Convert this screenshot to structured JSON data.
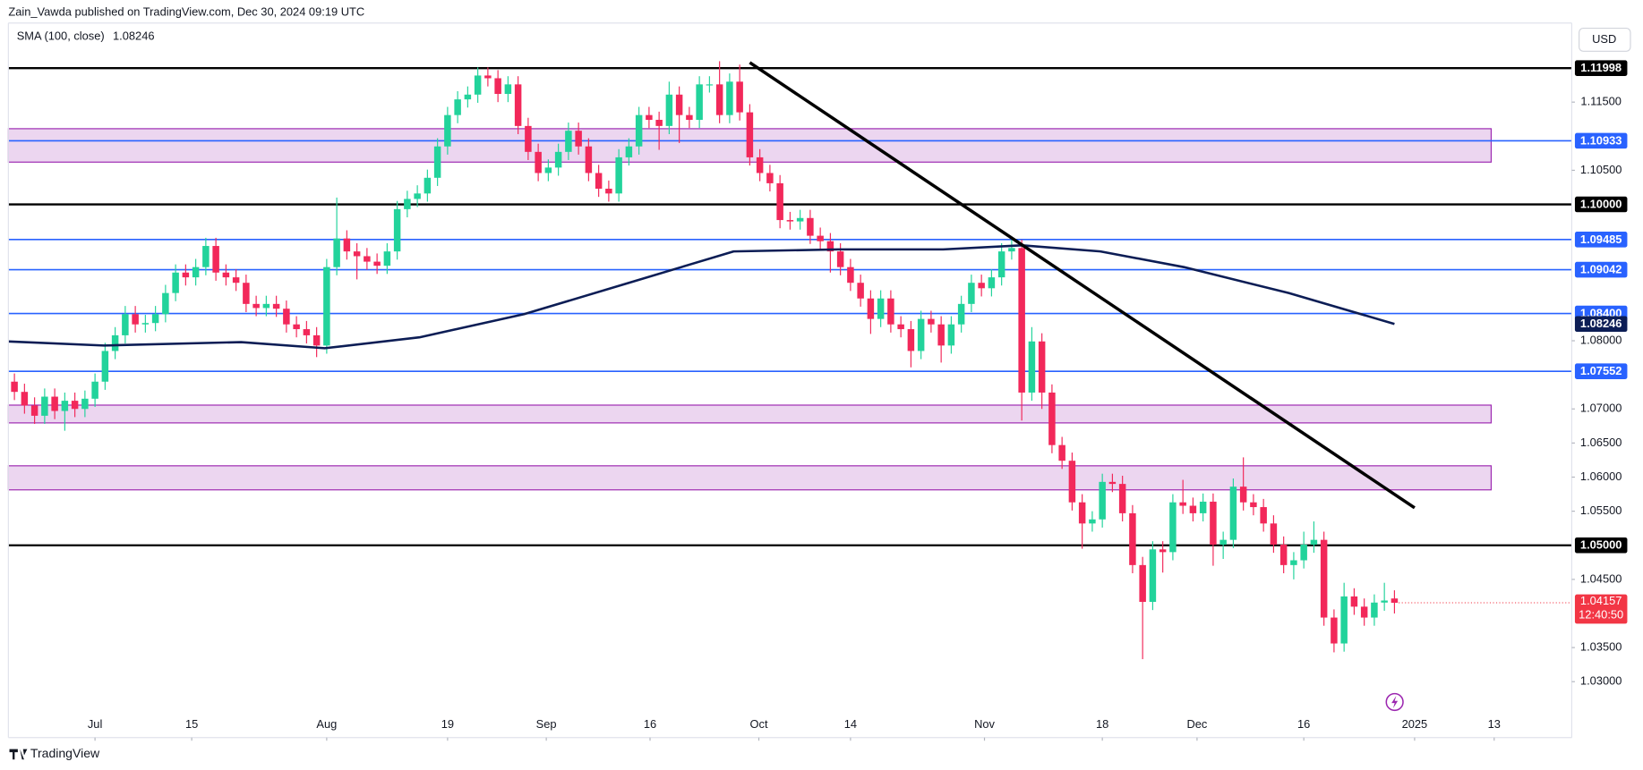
{
  "header": {
    "text": "Zain_Vawda published on TradingView.com, Dec 30, 2024 09:19 UTC"
  },
  "footer": {
    "brand": "TradingView"
  },
  "chart_data": {
    "type": "candlestick",
    "currency": "USD",
    "up_color": "#22d39b",
    "down_color": "#f2285a",
    "candles": [
      [
        1.074,
        1.0752,
        1.0713,
        1.0725
      ],
      [
        1.0725,
        1.0737,
        1.0693,
        1.0705
      ],
      [
        1.0705,
        1.0717,
        1.0678,
        1.069
      ],
      [
        1.069,
        1.073,
        1.0678,
        1.0718
      ],
      [
        1.0718,
        1.073,
        1.0685,
        1.0697
      ],
      [
        1.0697,
        1.0724,
        1.0668,
        1.0712
      ],
      [
        1.0712,
        1.0724,
        1.0688,
        1.07
      ],
      [
        1.07,
        1.0727,
        1.0688,
        1.0715
      ],
      [
        1.0715,
        1.0752,
        1.0703,
        1.074
      ],
      [
        1.074,
        1.0797,
        1.0728,
        1.0785
      ],
      [
        1.0785,
        1.082,
        1.0773,
        1.0808
      ],
      [
        1.0808,
        1.0851,
        1.0796,
        1.0839
      ],
      [
        1.0839,
        1.0851,
        1.0812,
        1.0824
      ],
      [
        1.0824,
        1.0838,
        1.0812,
        1.0826
      ],
      [
        1.0826,
        1.0851,
        1.0814,
        1.0839
      ],
      [
        1.0839,
        1.0882,
        1.0827,
        1.087
      ],
      [
        1.087,
        1.0912,
        1.0858,
        1.09
      ],
      [
        1.09,
        1.0912,
        1.0881,
        1.0893
      ],
      [
        1.0893,
        1.092,
        1.0881,
        1.0908
      ],
      [
        1.0908,
        1.0951,
        1.0896,
        1.0939
      ],
      [
        1.0939,
        1.0951,
        1.0888,
        1.09
      ],
      [
        1.09,
        1.0912,
        1.0881,
        1.0893
      ],
      [
        1.0893,
        1.0905,
        1.0873,
        1.0885
      ],
      [
        1.0885,
        1.0897,
        1.0842,
        1.0854
      ],
      [
        1.0854,
        1.0866,
        1.0836,
        1.0848
      ],
      [
        1.0848,
        1.0866,
        1.0836,
        1.0854
      ],
      [
        1.0854,
        1.0866,
        1.0835,
        1.0847
      ],
      [
        1.0847,
        1.0859,
        1.0812,
        1.0824
      ],
      [
        1.0824,
        1.0836,
        1.0805,
        1.0817
      ],
      [
        1.0817,
        1.0829,
        1.0796,
        1.0808
      ],
      [
        1.0808,
        1.082,
        1.0776,
        1.0793
      ],
      [
        1.0793,
        1.092,
        1.0781,
        1.0908
      ],
      [
        1.0908,
        1.101,
        1.0896,
        1.095
      ],
      [
        1.095,
        1.0962,
        1.0919,
        1.0931
      ],
      [
        1.0931,
        1.0943,
        1.089,
        1.0924
      ],
      [
        1.0924,
        1.0936,
        1.0904,
        1.0916
      ],
      [
        1.0916,
        1.0928,
        1.0898,
        1.091
      ],
      [
        1.091,
        1.0943,
        1.0898,
        1.0931
      ],
      [
        1.0931,
        1.1005,
        1.0919,
        1.0993
      ],
      [
        1.0993,
        1.102,
        1.0981,
        1.1008
      ],
      [
        1.1008,
        1.1028,
        1.0996,
        1.1016
      ],
      [
        1.1016,
        1.1051,
        1.1004,
        1.1039
      ],
      [
        1.1039,
        1.1097,
        1.1027,
        1.1085
      ],
      [
        1.1085,
        1.1143,
        1.1073,
        1.1131
      ],
      [
        1.1131,
        1.1166,
        1.1119,
        1.1154
      ],
      [
        1.1154,
        1.1173,
        1.1142,
        1.1161
      ],
      [
        1.1161,
        1.1201,
        1.1149,
        1.1189
      ],
      [
        1.1189,
        1.1201,
        1.1173,
        1.1185
      ],
      [
        1.1185,
        1.1197,
        1.115,
        1.1162
      ],
      [
        1.1162,
        1.1188,
        1.115,
        1.1176
      ],
      [
        1.1176,
        1.1188,
        1.1103,
        1.1115
      ],
      [
        1.1115,
        1.1127,
        1.1065,
        1.1077
      ],
      [
        1.1077,
        1.1089,
        1.1034,
        1.1046
      ],
      [
        1.1046,
        1.1066,
        1.1034,
        1.1054
      ],
      [
        1.1054,
        1.1089,
        1.1042,
        1.1077
      ],
      [
        1.1077,
        1.112,
        1.1065,
        1.1108
      ],
      [
        1.1108,
        1.112,
        1.1073,
        1.1085
      ],
      [
        1.1085,
        1.1097,
        1.1034,
        1.1046
      ],
      [
        1.1046,
        1.1058,
        1.1011,
        1.1023
      ],
      [
        1.1023,
        1.1035,
        1.1004,
        1.1016
      ],
      [
        1.1016,
        1.1081,
        1.1004,
        1.1069
      ],
      [
        1.1069,
        1.1097,
        1.1057,
        1.1085
      ],
      [
        1.1085,
        1.1143,
        1.1073,
        1.1131
      ],
      [
        1.1131,
        1.1143,
        1.1112,
        1.1124
      ],
      [
        1.1124,
        1.1136,
        1.108,
        1.1115
      ],
      [
        1.1115,
        1.118,
        1.1103,
        1.1161
      ],
      [
        1.1161,
        1.1173,
        1.109,
        1.1131
      ],
      [
        1.1131,
        1.1143,
        1.1112,
        1.1124
      ],
      [
        1.1124,
        1.1188,
        1.1112,
        1.1176
      ],
      [
        1.1176,
        1.1188,
        1.1164,
        1.1176
      ],
      [
        1.1176,
        1.121,
        1.1119,
        1.1131
      ],
      [
        1.1131,
        1.1192,
        1.1119,
        1.118
      ],
      [
        1.118,
        1.1205,
        1.1123,
        1.1135
      ],
      [
        1.1135,
        1.1147,
        1.1057,
        1.1069
      ],
      [
        1.1069,
        1.1081,
        1.1034,
        1.1046
      ],
      [
        1.1046,
        1.1058,
        1.1019,
        1.1031
      ],
      [
        1.1031,
        1.1043,
        1.0965,
        1.0977
      ],
      [
        1.0977,
        1.0989,
        1.0963,
        1.0975
      ],
      [
        1.0975,
        1.0992,
        1.0963,
        1.098
      ],
      [
        1.098,
        1.0992,
        1.0942,
        1.0954
      ],
      [
        1.0954,
        1.0966,
        1.0934,
        1.0946
      ],
      [
        1.0946,
        1.0958,
        1.09,
        1.0931
      ],
      [
        1.0931,
        1.0943,
        1.0896,
        1.0908
      ],
      [
        1.0908,
        1.092,
        1.0873,
        1.0885
      ],
      [
        1.0885,
        1.0897,
        1.085,
        1.0862
      ],
      [
        1.0862,
        1.0874,
        1.081,
        1.0832
      ],
      [
        1.0832,
        1.0874,
        1.082,
        1.0862
      ],
      [
        1.0862,
        1.0874,
        1.0812,
        1.0824
      ],
      [
        1.0824,
        1.0836,
        1.0805,
        1.0817
      ],
      [
        1.0817,
        1.0829,
        1.0761,
        1.0785
      ],
      [
        1.0785,
        1.0844,
        1.0773,
        1.0832
      ],
      [
        1.0832,
        1.0844,
        1.0812,
        1.0824
      ],
      [
        1.0824,
        1.0836,
        1.0768,
        1.0793
      ],
      [
        1.0793,
        1.0836,
        1.0781,
        1.0824
      ],
      [
        1.0824,
        1.0866,
        1.0812,
        1.0854
      ],
      [
        1.0854,
        1.0897,
        1.0842,
        1.0885
      ],
      [
        1.0885,
        1.0897,
        1.0865,
        1.0877
      ],
      [
        1.0877,
        1.0905,
        1.0865,
        1.0893
      ],
      [
        1.0893,
        1.0943,
        1.0881,
        1.0931
      ],
      [
        1.0931,
        1.0948,
        1.0919,
        1.0936
      ],
      [
        1.0936,
        1.0948,
        1.0683,
        1.0724
      ],
      [
        1.0724,
        1.082,
        1.0712,
        1.0799
      ],
      [
        1.0799,
        1.0811,
        1.07,
        1.0724
      ],
      [
        1.0724,
        1.0736,
        1.0635,
        1.0647
      ],
      [
        1.0647,
        1.0659,
        1.0612,
        1.0624
      ],
      [
        1.0624,
        1.0636,
        1.0551,
        1.0563
      ],
      [
        1.0563,
        1.0575,
        1.0495,
        1.0532
      ],
      [
        1.0532,
        1.055,
        1.052,
        1.0538
      ],
      [
        1.0538,
        1.0605,
        1.0526,
        1.0593
      ],
      [
        1.0593,
        1.0605,
        1.0578,
        1.059
      ],
      [
        1.059,
        1.0602,
        1.0535,
        1.0547
      ],
      [
        1.0547,
        1.0559,
        1.0459,
        1.0471
      ],
      [
        1.0471,
        1.0483,
        1.0333,
        1.0417
      ],
      [
        1.0417,
        1.0506,
        1.0405,
        1.0494
      ],
      [
        1.0494,
        1.0506,
        1.046,
        1.049
      ],
      [
        1.049,
        1.0575,
        1.0478,
        1.0563
      ],
      [
        1.0563,
        1.0596,
        1.0546,
        1.0558
      ],
      [
        1.0558,
        1.057,
        1.0535,
        1.0547
      ],
      [
        1.0547,
        1.0576,
        1.0535,
        1.0564
      ],
      [
        1.0564,
        1.0576,
        1.047,
        1.0501
      ],
      [
        1.0501,
        1.052,
        1.048,
        1.0508
      ],
      [
        1.0508,
        1.0598,
        1.0496,
        1.0586
      ],
      [
        1.0586,
        1.0629,
        1.0551,
        1.0563
      ],
      [
        1.0563,
        1.0575,
        1.0544,
        1.0556
      ],
      [
        1.0556,
        1.0568,
        1.052,
        1.0532
      ],
      [
        1.0532,
        1.0544,
        1.0489,
        1.0501
      ],
      [
        1.0501,
        1.0513,
        1.0459,
        1.0471
      ],
      [
        1.0471,
        1.049,
        1.045,
        1.0478
      ],
      [
        1.0478,
        1.052,
        1.0466,
        1.0501
      ],
      [
        1.0501,
        1.0535,
        1.0489,
        1.0508
      ],
      [
        1.0508,
        1.052,
        1.0382,
        1.0394
      ],
      [
        1.0394,
        1.0406,
        1.0343,
        1.0356
      ],
      [
        1.0356,
        1.0445,
        1.0344,
        1.0425
      ],
      [
        1.0425,
        1.0437,
        1.0398,
        1.041
      ],
      [
        1.041,
        1.0422,
        1.0382,
        1.0394
      ],
      [
        1.0394,
        1.0428,
        1.0382,
        1.0416
      ],
      [
        1.0416,
        1.0445,
        1.0404,
        1.0419
      ],
      [
        1.0422,
        1.0434,
        1.04,
        1.04157
      ]
    ],
    "xlim": [
      -0.6,
      154.6
    ],
    "xticks": [
      {
        "value": 8.0,
        "label": "Jul"
      },
      {
        "value": 17.6,
        "label": "15"
      },
      {
        "value": 31.0,
        "label": "Aug"
      },
      {
        "value": 43.0,
        "label": "19"
      },
      {
        "value": 52.8,
        "label": "Sep"
      },
      {
        "value": 63.1,
        "label": "16"
      },
      {
        "value": 73.9,
        "label": "Oct"
      },
      {
        "value": 83.0,
        "label": "14"
      },
      {
        "value": 96.3,
        "label": "Nov"
      },
      {
        "value": 108.0,
        "label": "18"
      },
      {
        "value": 117.4,
        "label": "Dec"
      },
      {
        "value": 128.0,
        "label": "16"
      },
      {
        "value": 139.0,
        "label": "2025"
      },
      {
        "value": 146.9,
        "label": "13"
      }
    ],
    "ylim": [
      1.0218,
      1.1266
    ],
    "yticks": [
      {
        "value": 1.115,
        "label": "1.11500"
      },
      {
        "value": 1.105,
        "label": "1.10500"
      },
      {
        "value": 1.08,
        "label": "1.08000"
      },
      {
        "value": 1.07,
        "label": "1.07000"
      },
      {
        "value": 1.065,
        "label": "1.06500"
      },
      {
        "value": 1.06,
        "label": "1.06000"
      },
      {
        "value": 1.055,
        "label": "1.05500"
      },
      {
        "value": 1.045,
        "label": "1.04500"
      },
      {
        "value": 1.035,
        "label": "1.03500"
      },
      {
        "value": 1.03,
        "label": "1.03000"
      }
    ],
    "levels": [
      {
        "value": 1.11998,
        "color": "#000000"
      },
      {
        "value": 1.10933,
        "color": "#2962ff"
      },
      {
        "value": 1.1,
        "label": "1.10000",
        "color": "#000000"
      },
      {
        "value": 1.09485,
        "color": "#2962ff"
      },
      {
        "value": 1.09042,
        "color": "#2962ff"
      },
      {
        "value": 1.084,
        "label": "1.08400",
        "color": "#2962ff"
      },
      {
        "value": 1.07552,
        "color": "#2962ff"
      },
      {
        "value": 1.05,
        "label": "1.05000",
        "color": "#000000"
      }
    ],
    "zones": [
      {
        "low": 1.1062,
        "high": 1.1111,
        "x_end": 146.6
      },
      {
        "low": 1.06795,
        "high": 1.07056,
        "x_end": 146.6
      },
      {
        "low": 1.05813,
        "high": 1.06166,
        "x_end": 146.6
      }
    ],
    "sma": {
      "name": "SMA (100, close)",
      "color": "#0c1d55",
      "x": [
        -0.6,
        8.9,
        22.5,
        30.8,
        40.2,
        50.6,
        61.0,
        71.4,
        81.8,
        92.2,
        100.0,
        107.8,
        116.1,
        126.5,
        137.0
      ],
      "values": [
        1.0799,
        1.0793,
        1.0798,
        1.0789,
        1.0805,
        1.0839,
        1.0885,
        1.0931,
        1.0934,
        1.0934,
        1.094,
        1.0931,
        1.0908,
        1.087,
        1.08246
      ]
    },
    "trendline": {
      "x": [
        73.0,
        139.0
      ],
      "values": [
        1.1208,
        1.0555
      ],
      "color": "#000000"
    },
    "countdown": "12:40:50",
    "last_price_color": "#f23645"
  }
}
